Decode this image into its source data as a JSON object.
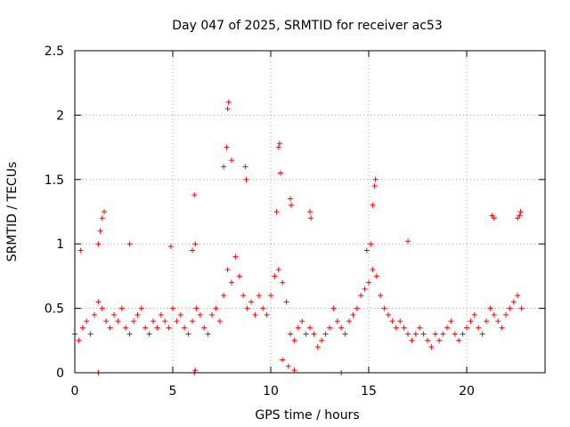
{
  "chart_data": {
    "type": "scatter",
    "title": "Day 047 of 2025, SRMTID for receiver ac53",
    "xlabel": "GPS time / hours",
    "ylabel": "SRMTID / TECUs",
    "xlim": [
      0,
      24
    ],
    "ylim": [
      0,
      2.5
    ],
    "xticks": [
      0,
      5,
      10,
      15,
      20
    ],
    "xtick_labels": [
      "0",
      "5",
      "10",
      "15",
      "20"
    ],
    "yticks": [
      0,
      0.5,
      1,
      1.5,
      2,
      2.5
    ],
    "ytick_labels": [
      "0",
      "0.5",
      "1",
      "1.5",
      "2",
      "2.5"
    ],
    "grid": true,
    "marker": "plus",
    "color": "#ff0000",
    "series": [
      {
        "name": "ac53",
        "x": [
          0.0,
          0.2,
          0.4,
          0.6,
          0.8,
          1.0,
          1.2,
          1.4,
          1.6,
          1.8,
          2.0,
          2.2,
          2.4,
          2.6,
          2.8,
          3.0,
          3.2,
          3.4,
          3.6,
          3.8,
          4.0,
          4.2,
          4.4,
          4.6,
          4.8,
          5.0,
          5.2,
          5.4,
          5.6,
          5.8,
          6.0,
          6.2,
          6.4,
          6.6,
          6.8,
          7.0,
          7.2,
          7.4,
          7.6,
          7.8,
          8.0,
          8.2,
          8.4,
          8.6,
          8.8,
          9.0,
          9.2,
          9.4,
          9.6,
          9.8,
          10.0,
          10.2,
          10.4,
          10.6,
          10.8,
          11.0,
          11.2,
          11.4,
          11.6,
          11.8,
          12.0,
          12.2,
          12.4,
          12.6,
          12.8,
          13.0,
          13.2,
          13.4,
          13.6,
          13.8,
          14.0,
          14.2,
          14.4,
          14.6,
          14.8,
          15.0,
          15.2,
          15.4,
          15.6,
          15.8,
          16.0,
          16.2,
          16.4,
          16.6,
          16.8,
          17.0,
          17.2,
          17.4,
          17.6,
          17.8,
          18.0,
          18.2,
          18.4,
          18.6,
          18.8,
          19.0,
          19.2,
          19.4,
          19.6,
          19.8,
          20.0,
          20.2,
          20.4,
          20.6,
          20.8,
          21.0,
          21.2,
          21.4,
          21.6,
          21.8,
          22.0,
          22.2,
          22.4,
          22.6,
          22.8,
          0.3,
          1.2,
          1.3,
          1.4,
          1.5,
          2.8,
          4.9,
          6.0,
          6.1,
          6.15,
          7.6,
          7.75,
          7.8,
          7.85,
          8.0,
          8.7,
          8.75,
          10.3,
          10.4,
          10.45,
          10.5,
          11.0,
          11.05,
          12.0,
          12.05,
          14.9,
          15.1,
          15.2,
          15.3,
          15.35,
          17.0,
          21.3,
          21.4,
          22.6,
          22.7,
          22.75,
          1.2,
          6.1,
          6.15,
          10.6,
          10.9,
          11.2,
          13.6
        ],
        "y": [
          0.3,
          0.25,
          0.35,
          0.4,
          0.3,
          0.45,
          0.55,
          0.5,
          0.4,
          0.35,
          0.45,
          0.4,
          0.5,
          0.35,
          0.3,
          0.4,
          0.45,
          0.5,
          0.35,
          0.3,
          0.4,
          0.35,
          0.45,
          0.4,
          0.35,
          0.5,
          0.4,
          0.45,
          0.35,
          0.3,
          0.4,
          0.5,
          0.45,
          0.35,
          0.3,
          0.45,
          0.5,
          0.4,
          0.6,
          0.8,
          0.7,
          0.9,
          0.75,
          0.6,
          0.5,
          0.55,
          0.45,
          0.6,
          0.5,
          0.45,
          0.6,
          0.75,
          0.8,
          0.7,
          0.55,
          0.3,
          0.25,
          0.35,
          0.4,
          0.3,
          0.35,
          0.3,
          0.2,
          0.25,
          0.3,
          0.35,
          0.5,
          0.4,
          0.35,
          0.3,
          0.4,
          0.45,
          0.5,
          0.6,
          0.65,
          0.7,
          0.8,
          0.75,
          0.6,
          0.5,
          0.45,
          0.4,
          0.35,
          0.4,
          0.35,
          0.3,
          0.25,
          0.3,
          0.35,
          0.3,
          0.25,
          0.2,
          0.3,
          0.25,
          0.3,
          0.35,
          0.4,
          0.3,
          0.25,
          0.3,
          0.35,
          0.4,
          0.45,
          0.35,
          0.3,
          0.4,
          0.5,
          0.45,
          0.4,
          0.35,
          0.45,
          0.5,
          0.55,
          0.6,
          0.5,
          0.95,
          1.0,
          1.1,
          1.2,
          1.25,
          1.0,
          0.98,
          0.95,
          1.38,
          1.0,
          1.6,
          1.75,
          2.05,
          2.1,
          1.65,
          1.6,
          1.5,
          1.25,
          1.75,
          1.78,
          1.55,
          1.35,
          1.3,
          1.25,
          1.2,
          0.95,
          1.0,
          1.3,
          1.45,
          1.5,
          1.02,
          1.22,
          1.2,
          1.2,
          1.22,
          1.25,
          0.0,
          0.0,
          0.02,
          0.1,
          0.05,
          0.02,
          0.0
        ]
      }
    ]
  }
}
